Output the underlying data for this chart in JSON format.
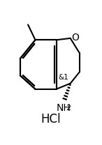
{
  "background_color": "#ffffff",
  "line_color": "#000000",
  "bond_width": 1.5,
  "font_size_label": 9,
  "font_size_hcl": 12,
  "hcl_text": "HCl",
  "nh2_text": "NH",
  "nh2_sub": "2",
  "stereo_label": "&1",
  "oxygen_label": "O",
  "fig_width": 1.46,
  "fig_height": 2.08,
  "dpi": 100
}
